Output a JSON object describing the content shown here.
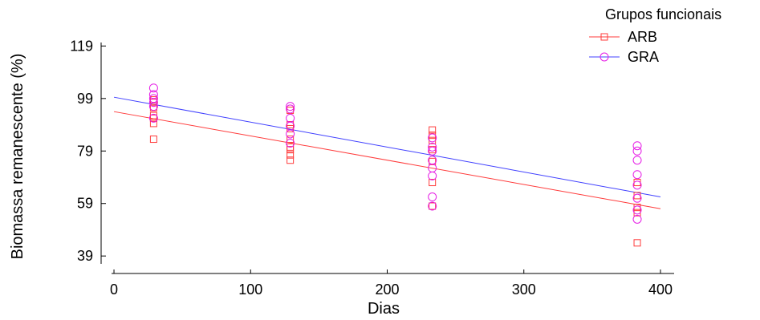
{
  "chart_data": {
    "type": "scatter",
    "title": "",
    "xlabel": "Dias",
    "ylabel": "Biomassa remanescente (%)",
    "xlim": [
      -10,
      410
    ],
    "ylim": [
      36,
      124
    ],
    "x_ticks": [
      0,
      100,
      200,
      300,
      400
    ],
    "y_ticks": [
      39,
      59,
      79,
      99,
      119
    ],
    "grid": false,
    "legend": {
      "title": "Grupos funcionais",
      "placement": "top-right"
    },
    "colors": {
      "ARB": "#ff3b3b",
      "GRA_points": "#e61ee6",
      "GRA_line": "#4040ff"
    },
    "series": [
      {
        "name": "ARB",
        "marker": "square",
        "fit_line": {
          "x": [
            0,
            400
          ],
          "y": [
            94.0,
            57.0
          ]
        },
        "points": [
          {
            "x": 29,
            "y": 83.5
          },
          {
            "x": 29,
            "y": 89.5
          },
          {
            "x": 29,
            "y": 91.5
          },
          {
            "x": 29,
            "y": 92.5
          },
          {
            "x": 29,
            "y": 95.5
          },
          {
            "x": 29,
            "y": 97.5
          },
          {
            "x": 29,
            "y": 98.5
          },
          {
            "x": 129,
            "y": 75.5
          },
          {
            "x": 129,
            "y": 77.5
          },
          {
            "x": 129,
            "y": 79.5
          },
          {
            "x": 129,
            "y": 80.5
          },
          {
            "x": 129,
            "y": 83.5
          },
          {
            "x": 129,
            "y": 87.5
          },
          {
            "x": 129,
            "y": 89.0
          },
          {
            "x": 129,
            "y": 94.5
          },
          {
            "x": 233,
            "y": 58.0
          },
          {
            "x": 233,
            "y": 67.0
          },
          {
            "x": 233,
            "y": 75.0
          },
          {
            "x": 233,
            "y": 79.5
          },
          {
            "x": 233,
            "y": 83.0
          },
          {
            "x": 233,
            "y": 85.0
          },
          {
            "x": 233,
            "y": 87.0
          },
          {
            "x": 383,
            "y": 44.0
          },
          {
            "x": 383,
            "y": 55.5
          },
          {
            "x": 383,
            "y": 57.5
          },
          {
            "x": 383,
            "y": 62.0
          },
          {
            "x": 383,
            "y": 67.0
          }
        ]
      },
      {
        "name": "GRA",
        "marker": "circle",
        "fit_line": {
          "x": [
            0,
            400
          ],
          "y": [
            99.5,
            61.5
          ]
        },
        "points": [
          {
            "x": 29,
            "y": 91.5
          },
          {
            "x": 29,
            "y": 96.0
          },
          {
            "x": 29,
            "y": 97.5
          },
          {
            "x": 29,
            "y": 99.0
          },
          {
            "x": 29,
            "y": 100.5
          },
          {
            "x": 29,
            "y": 103.0
          },
          {
            "x": 129,
            "y": 82.0
          },
          {
            "x": 129,
            "y": 85.5
          },
          {
            "x": 129,
            "y": 88.5
          },
          {
            "x": 129,
            "y": 91.5
          },
          {
            "x": 129,
            "y": 95.0
          },
          {
            "x": 129,
            "y": 96.0
          },
          {
            "x": 233,
            "y": 58.0
          },
          {
            "x": 233,
            "y": 61.5
          },
          {
            "x": 233,
            "y": 69.5
          },
          {
            "x": 233,
            "y": 72.5
          },
          {
            "x": 233,
            "y": 75.5
          },
          {
            "x": 233,
            "y": 79.0
          },
          {
            "x": 233,
            "y": 80.5
          },
          {
            "x": 233,
            "y": 84.0
          },
          {
            "x": 383,
            "y": 53.0
          },
          {
            "x": 383,
            "y": 56.5
          },
          {
            "x": 383,
            "y": 61.0
          },
          {
            "x": 383,
            "y": 66.0
          },
          {
            "x": 383,
            "y": 70.0
          },
          {
            "x": 383,
            "y": 75.5
          },
          {
            "x": 383,
            "y": 79.0
          },
          {
            "x": 383,
            "y": 81.0
          }
        ]
      }
    ]
  }
}
